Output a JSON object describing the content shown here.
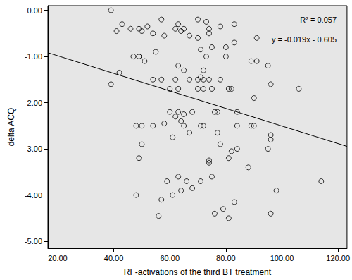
{
  "chart_data": {
    "type": "scatter",
    "x_label": "RF-activations of the third BT treatment",
    "y_label": "delta ACQ",
    "annotations": [
      "R² = 0.057",
      "y = -0.019x - 0.605"
    ],
    "marker": "circle",
    "color": "#000000",
    "grid": false,
    "xlim": [
      16.5,
      123.2
    ],
    "ylim": [
      -5.15,
      0.1
    ],
    "xticks": [
      {
        "value": 20,
        "label": "20.00"
      },
      {
        "value": 40,
        "label": "40.00"
      },
      {
        "value": 60,
        "label": "60.00"
      },
      {
        "value": 80,
        "label": "80.00"
      },
      {
        "value": 100,
        "label": "100.00"
      },
      {
        "value": 120,
        "label": "120.00"
      }
    ],
    "yticks": [
      {
        "value": 0,
        "label": "0.00"
      },
      {
        "value": -1,
        "label": "-1.00"
      },
      {
        "value": -2,
        "label": "-2.00"
      },
      {
        "value": -3,
        "label": "-3.00"
      },
      {
        "value": -4,
        "label": "-4.00"
      },
      {
        "value": -5,
        "label": "-5.00"
      }
    ],
    "trend_line": {
      "x": [
        16.5,
        123.2
      ],
      "values": [
        -0.9185,
        -2.946
      ]
    },
    "x": [
      39,
      39,
      41,
      42,
      43,
      46,
      47,
      48,
      48,
      49,
      49,
      49,
      49,
      50,
      50,
      50,
      51,
      52,
      54,
      54,
      54,
      55,
      56,
      57,
      57,
      57,
      58,
      58,
      59,
      60,
      60,
      61,
      61,
      62,
      62,
      62,
      63,
      63,
      63,
      63,
      63,
      64,
      64,
      64,
      65,
      65,
      65,
      65,
      66,
      67,
      67,
      67,
      68,
      68,
      70,
      70,
      70,
      70,
      71,
      71,
      71,
      71,
      72,
      72,
      72,
      72,
      73,
      73,
      74,
      74,
      74,
      74,
      74,
      75,
      75,
      75,
      76,
      76,
      77,
      77,
      78,
      78,
      78,
      79,
      80,
      80,
      81,
      81,
      81,
      82,
      82,
      83,
      83,
      83,
      84,
      84,
      84,
      88,
      89,
      89,
      90,
      90,
      91,
      91,
      95,
      95,
      96,
      96,
      96,
      96,
      98,
      106,
      114
    ],
    "values": [
      0.0,
      -1.6,
      -0.45,
      -1.35,
      -0.3,
      -0.4,
      -1.0,
      -2.5,
      -4.0,
      -0.4,
      -1.0,
      -1.0,
      -3.2,
      -0.45,
      -2.9,
      -2.5,
      -1.1,
      -0.35,
      -0.5,
      -1.5,
      -2.5,
      -0.9,
      -4.45,
      -0.2,
      -1.5,
      -4.1,
      -0.55,
      -2.45,
      -3.7,
      -1.7,
      -2.2,
      -2.75,
      -4.0,
      -0.4,
      -1.5,
      -2.3,
      -0.3,
      -1.2,
      -1.7,
      -2.2,
      -3.6,
      -0.45,
      -2.4,
      -3.9,
      -0.4,
      -1.3,
      -2.25,
      -2.5,
      -3.7,
      -0.55,
      -1.5,
      -2.65,
      -3.85,
      -2.2,
      -0.2,
      -0.6,
      -1.7,
      -1.5,
      -0.85,
      -1.45,
      -2.5,
      -3.7,
      -1.7,
      -1.3,
      -1.5,
      -2.5,
      -0.25,
      -1.0,
      -0.4,
      -0.5,
      -1.5,
      -3.25,
      -3.3,
      -0.8,
      -1.7,
      -3.6,
      -2.2,
      -4.4,
      -2.2,
      -2.65,
      -0.35,
      -1.5,
      -2.9,
      -4.3,
      -0.8,
      -1.0,
      -1.7,
      -3.2,
      -4.5,
      -1.7,
      -3.05,
      -0.3,
      -0.7,
      -4.15,
      -2.2,
      -2.5,
      -3.0,
      -3.4,
      -2.5,
      -1.1,
      -1.9,
      -2.5,
      -0.6,
      -1.1,
      -3.0,
      -1.2,
      -1.6,
      -2.7,
      -2.8,
      -4.4,
      -3.9,
      -1.7,
      -3.7
    ]
  }
}
